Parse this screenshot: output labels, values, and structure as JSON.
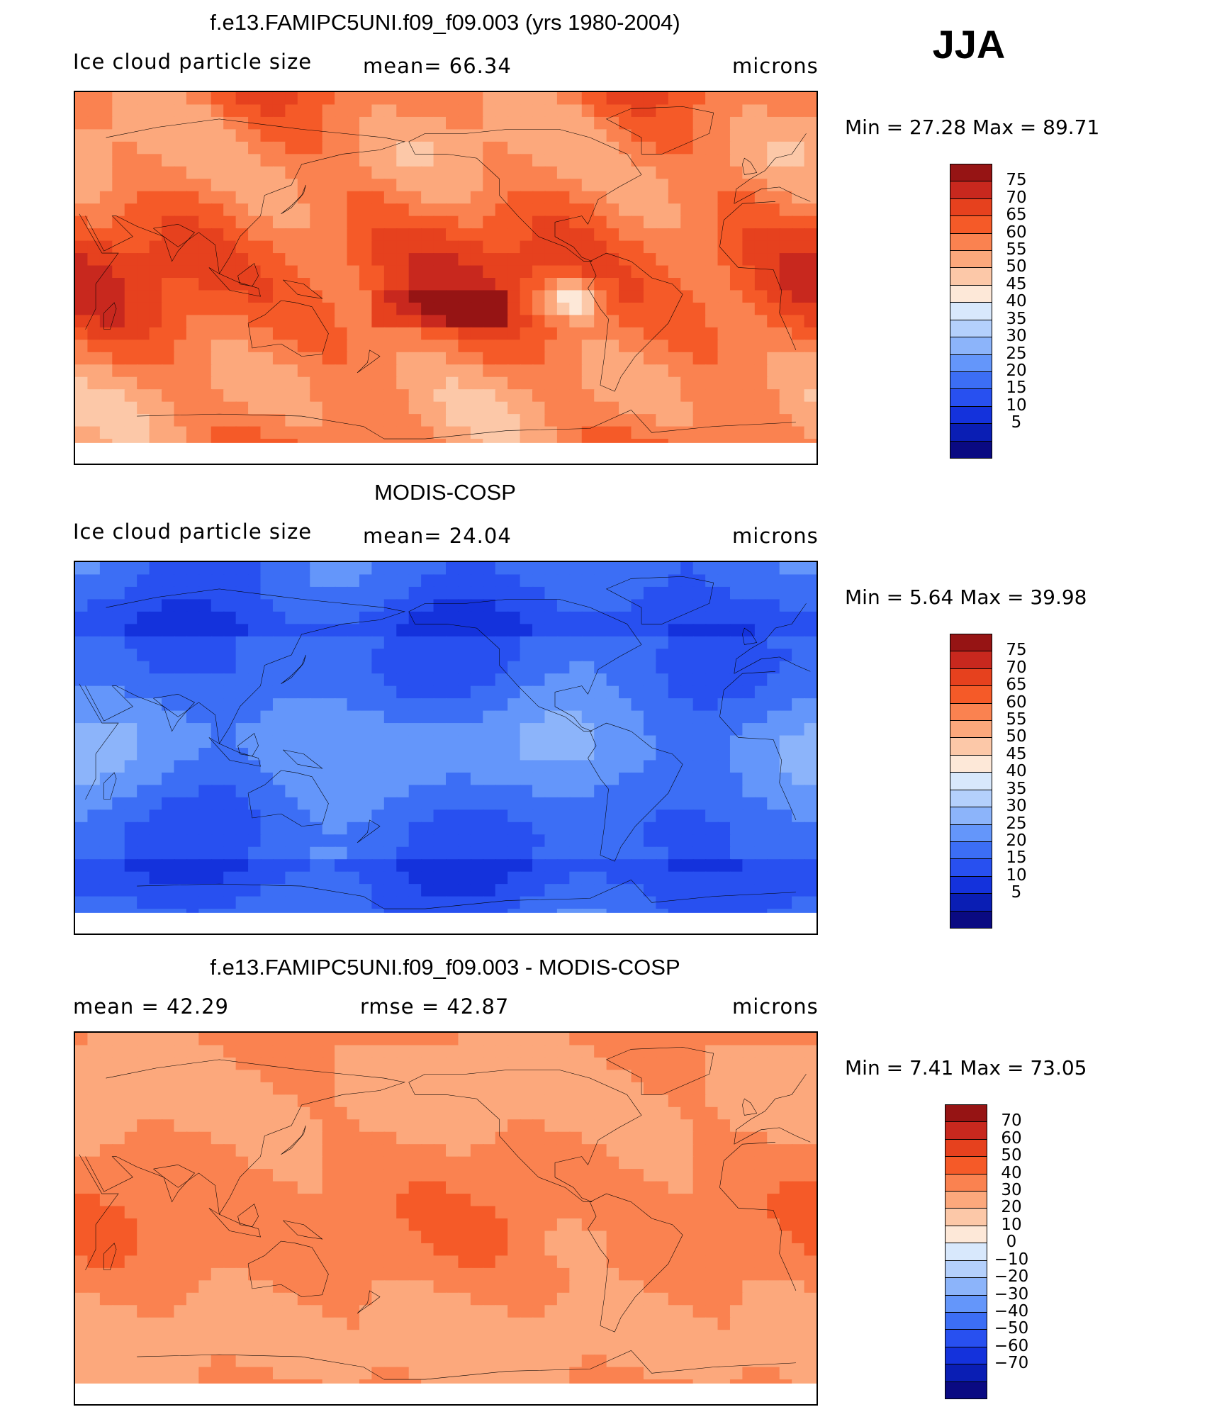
{
  "season": "JJA",
  "colors": {
    "full_scale": [
      "#0a0a82",
      "#0a1eb4",
      "#1432dc",
      "#2850f0",
      "#3c6ef5",
      "#6496fa",
      "#8cb4fa",
      "#b4d0fc",
      "#d8e8fc",
      "#fde8d8",
      "#fcc8a8",
      "#fca87c",
      "#fa8250",
      "#f55a28",
      "#e6411e",
      "#c8281e",
      "#961414"
    ],
    "diff_scale": [
      "#0a0a82",
      "#0a1eb4",
      "#1432dc",
      "#2850f0",
      "#3c6ef5",
      "#6496fa",
      "#8cb4fa",
      "#b4d0fc",
      "#d8e8fc",
      "#fde8d8",
      "#fcc8a8",
      "#fca87c",
      "#fa8250",
      "#f55a28",
      "#e6411e",
      "#c8281e",
      "#961414"
    ],
    "coast": "#000000"
  },
  "panels": [
    {
      "id": "model",
      "title": "f.e13.FAMIPC5UNI.f09_f09.003 (yrs 1980-2004)",
      "left_label": "Ice  cloud  particle  size",
      "mid_label": "mean=   66.34",
      "units": "microns",
      "stats": "Min  =     27.28  Max  =     89.71",
      "colorbar": {
        "labels": [
          "75",
          "70",
          "65",
          "60",
          "55",
          "50",
          "45",
          "40",
          "35",
          "30",
          "25",
          "20",
          "15",
          "10",
          "5"
        ]
      },
      "field": {
        "base": 65,
        "pattern": "model"
      }
    },
    {
      "id": "obs",
      "title": "MODIS-COSP",
      "left_label": "Ice  cloud  particle  size",
      "mid_label": "mean=   24.04",
      "units": "microns",
      "stats": "Min  =      5.64  Max  =     39.98",
      "colorbar": {
        "labels": [
          "75",
          "70",
          "65",
          "60",
          "55",
          "50",
          "45",
          "40",
          "35",
          "30",
          "25",
          "20",
          "15",
          "10",
          "5"
        ]
      },
      "field": {
        "base": 24,
        "pattern": "obs"
      }
    },
    {
      "id": "diff",
      "title": "f.e13.FAMIPC5UNI.f09_f09.003 - MODIS-COSP",
      "left_label": "mean  =     42.29",
      "mid_label": "rmse  =     42.87",
      "units": "microns",
      "stats": "Min  =      7.41  Max  =     73.05",
      "colorbar": {
        "labels": [
          "70",
          "60",
          "50",
          "40",
          "30",
          "20",
          "10",
          "0",
          "−10",
          "−20",
          "−30",
          "−40",
          "−50",
          "−60",
          "−70"
        ]
      },
      "field": {
        "base": 42,
        "pattern": "diff"
      }
    }
  ]
}
